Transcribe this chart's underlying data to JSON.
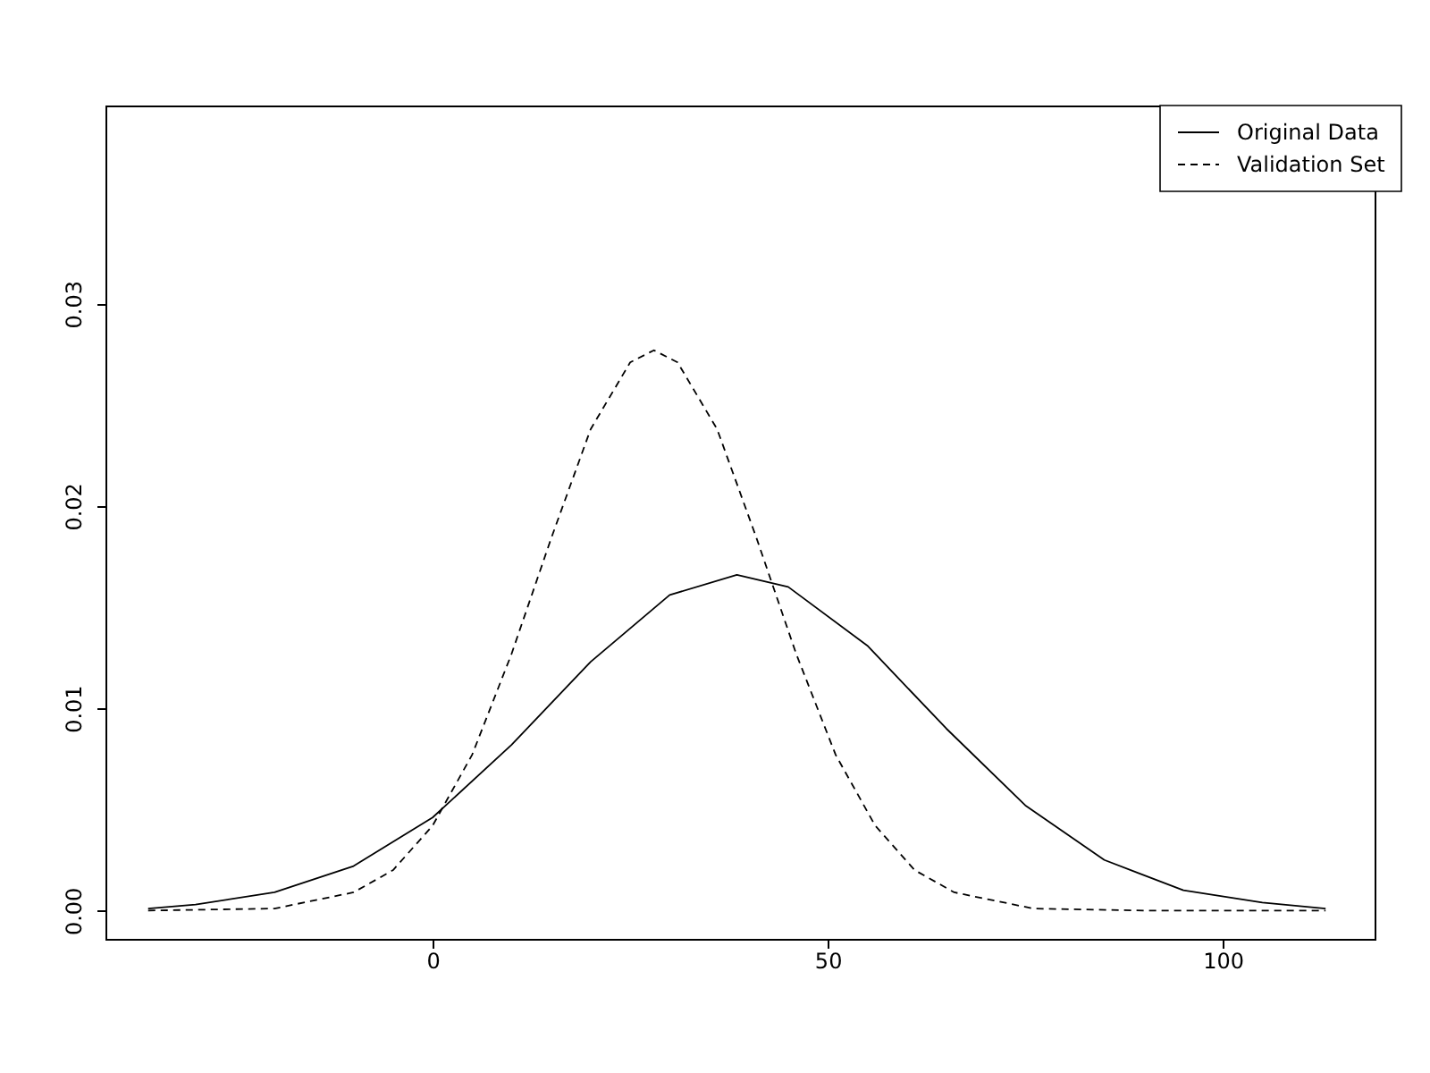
{
  "chart_data": {
    "type": "line",
    "series": [
      {
        "name": "Original Data",
        "color": "#000000",
        "line_style": "solid",
        "x": [
          -36,
          -30,
          -20,
          -10,
          0,
          10,
          20,
          30,
          38.5,
          45,
          55,
          65,
          75,
          85,
          95,
          105,
          113
        ],
        "values": [
          0.0001,
          0.0003,
          0.0009,
          0.0022,
          0.0046,
          0.0082,
          0.0123,
          0.0156,
          0.0166,
          0.016,
          0.0131,
          0.009,
          0.0052,
          0.0025,
          0.001,
          0.0004,
          0.0001
        ]
      },
      {
        "name": "Validation Set",
        "color": "#000000",
        "line_style": "dashed",
        "x": [
          -36,
          -20,
          -10,
          -5,
          0,
          5,
          10,
          15,
          20,
          25,
          28,
          31,
          36,
          41,
          46,
          51,
          56,
          61,
          66,
          76,
          90,
          113
        ],
        "values": [
          0,
          0.0001,
          0.0009,
          0.002,
          0.0042,
          0.0077,
          0.0127,
          0.0184,
          0.0238,
          0.0271,
          0.0277,
          0.0271,
          0.0238,
          0.0184,
          0.0127,
          0.0077,
          0.0042,
          0.002,
          0.0009,
          0.0001,
          0,
          0
        ]
      }
    ],
    "xlim": [
      -41.4,
      119.2
    ],
    "ylim": [
      -0.0014,
      0.0398
    ],
    "xticks": [
      0,
      50,
      100
    ],
    "yticks": [
      {
        "value": 0,
        "label": "0.00"
      },
      {
        "value": 0.01,
        "label": "0.01"
      },
      {
        "value": 0.02,
        "label": "0.02"
      },
      {
        "value": 0.03,
        "label": "0.03"
      }
    ],
    "grid": false,
    "legend": "top right"
  }
}
